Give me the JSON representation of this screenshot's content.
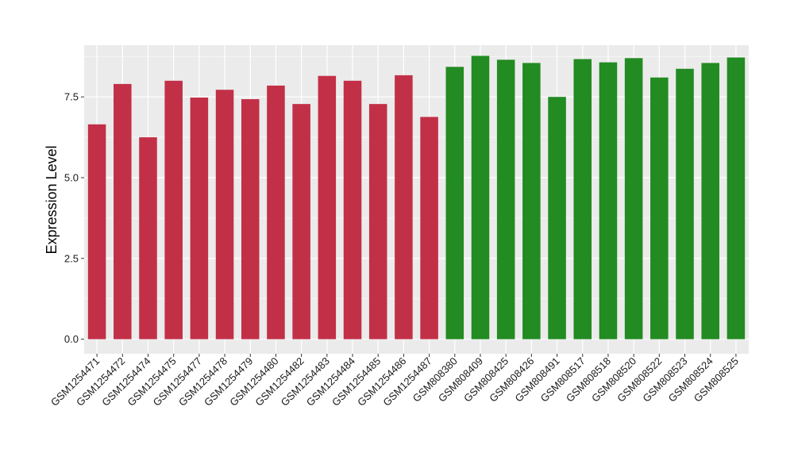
{
  "chart_data": {
    "type": "bar",
    "title": "",
    "xlabel": "",
    "ylabel": "Expression Level",
    "ylim": [
      -0.45,
      9.1
    ],
    "yticks": [
      0.0,
      2.5,
      5.0,
      7.5
    ],
    "ytick_labels": [
      "0.0",
      "2.5",
      "5.0",
      "7.5"
    ],
    "grid": true,
    "legend": "none",
    "categories": [
      "GSM1254471",
      "GSM1254472",
      "GSM1254474",
      "GSM1254475",
      "GSM1254477",
      "GSM1254478",
      "GSM1254479",
      "GSM1254480",
      "GSM1254482",
      "GSM1254483",
      "GSM1254484",
      "GSM1254485",
      "GSM1254486",
      "GSM1254487",
      "GSM808380",
      "GSM808409",
      "GSM808425",
      "GSM808426",
      "GSM808491",
      "GSM808517",
      "GSM808518",
      "GSM808520",
      "GSM808522",
      "GSM808523",
      "GSM808524",
      "GSM808525"
    ],
    "values": [
      6.65,
      7.9,
      6.25,
      8.0,
      7.48,
      7.72,
      7.43,
      7.85,
      7.28,
      8.15,
      8.0,
      7.28,
      8.17,
      6.88,
      8.43,
      8.77,
      8.65,
      8.55,
      7.5,
      8.67,
      8.57,
      8.7,
      8.1,
      8.37,
      8.55,
      8.72
    ],
    "colors": [
      "#c23047",
      "#c23047",
      "#c23047",
      "#c23047",
      "#c23047",
      "#c23047",
      "#c23047",
      "#c23047",
      "#c23047",
      "#c23047",
      "#c23047",
      "#c23047",
      "#c23047",
      "#c23047",
      "#228b22",
      "#228b22",
      "#228b22",
      "#228b22",
      "#228b22",
      "#228b22",
      "#228b22",
      "#228b22",
      "#228b22",
      "#228b22",
      "#228b22",
      "#228b22"
    ],
    "panel_background": "#ebebeb",
    "gridline_color": "#ffffff"
  }
}
